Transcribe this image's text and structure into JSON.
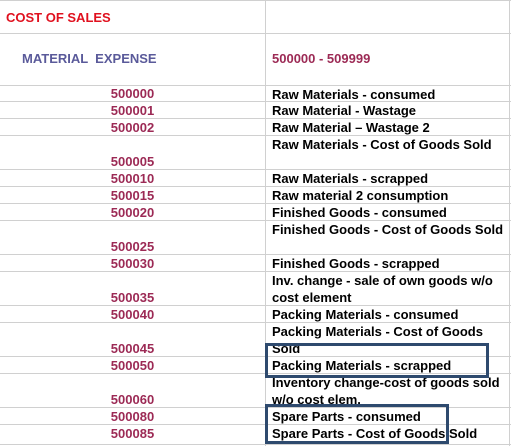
{
  "section_title": "COST OF SALES",
  "category": {
    "label": "MATERIAL  EXPENSE",
    "range": "500000 - 509999"
  },
  "accounts": [
    {
      "code": "500000",
      "description": "Raw Materials - consumed"
    },
    {
      "code": "500001",
      "description": "Raw Material - Wastage"
    },
    {
      "code": "500002",
      "description": "Raw Material – Wastage 2"
    },
    {
      "code": "500005",
      "description": "Raw Materials - Cost of Goods Sold"
    },
    {
      "code": "500010",
      "description": "Raw Materials - scrapped"
    },
    {
      "code": "500015",
      "description": "Raw material 2 consumption"
    },
    {
      "code": "500020",
      "description": "Finished Goods - consumed"
    },
    {
      "code": "500025",
      "description": "Finished Goods - Cost of Goods Sold"
    },
    {
      "code": "500030",
      "description": "Finished Goods - scrapped"
    },
    {
      "code": "500035",
      "description": "Inv. change - sale of own goods w/o cost element"
    },
    {
      "code": "500040",
      "description": "Packing Materials - consumed"
    },
    {
      "code": "500045",
      "description": "Packing Materials - Cost of Goods Sold"
    },
    {
      "code": "500050",
      "description": "Packing Materials - scrapped"
    },
    {
      "code": "500060",
      "description": "Inventory change-cost of goods sold w/o cost elem."
    },
    {
      "code": "500080",
      "description": "Spare Parts - consumed"
    },
    {
      "code": "500085",
      "description": "Spare Parts - Cost of Goods Sold"
    }
  ],
  "colors": {
    "title": "#e0101e",
    "category_label": "#5a5a9a",
    "code": "#9c2a55",
    "range": "#9c2a55",
    "highlight_box": "#2e4a6e",
    "grid": "#d0d0d0"
  }
}
